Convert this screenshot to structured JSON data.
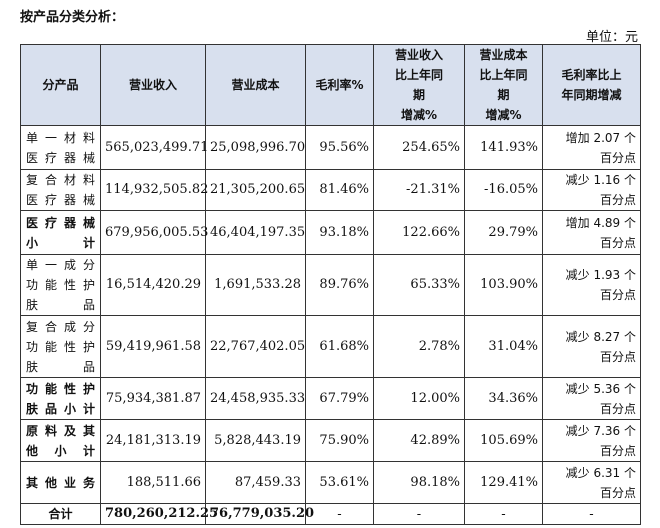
{
  "title": "按产品分类分析：",
  "unit": "单位：元",
  "headers": {
    "product": "分产品",
    "revenue": "营业收入",
    "cost": "营业成本",
    "margin": "毛利率%",
    "revenue_change": [
      "营业收入",
      "比上年同",
      "期",
      "增减%"
    ],
    "cost_change": [
      "营业成本",
      "比上年同",
      "期",
      "增减%"
    ],
    "margin_change": [
      "毛利率比上",
      "年同期增减"
    ]
  },
  "rows": [
    {
      "product": [
        "单一材料",
        "医疗器械"
      ],
      "revenue": "565,023,499.71",
      "cost": "25,098,996.70",
      "margin": "95.56%",
      "revenue_change": "254.65%",
      "cost_change": "141.93%",
      "margin_change": [
        "增加 2.07 个",
        "百分点"
      ],
      "bold": false
    },
    {
      "product": [
        "复合材料",
        "医疗器械"
      ],
      "revenue": "114,932,505.82",
      "cost": "21,305,200.65",
      "margin": "81.46%",
      "revenue_change": "-21.31%",
      "cost_change": "-16.05%",
      "margin_change": [
        "减少 1.16 个",
        "百分点"
      ],
      "bold": false
    },
    {
      "product": [
        "医疗器械",
        "小计"
      ],
      "revenue": "679,956,005.53",
      "cost": "46,404,197.35",
      "margin": "93.18%",
      "revenue_change": "122.66%",
      "cost_change": "29.79%",
      "margin_change": [
        "增加 4.89 个",
        "百分点"
      ],
      "bold": true
    },
    {
      "product": [
        "单一成分",
        "功能性护",
        "肤品"
      ],
      "revenue": "16,514,420.29",
      "cost": "1,691,533.28",
      "margin": "89.76%",
      "revenue_change": "65.33%",
      "cost_change": "103.90%",
      "margin_change": [
        "减少 1.93 个",
        "百分点"
      ],
      "bold": false
    },
    {
      "product": [
        "复合成分",
        "功能性护",
        "肤品"
      ],
      "revenue": "59,419,961.58",
      "cost": "22,767,402.05",
      "margin": "61.68%",
      "revenue_change": "2.78%",
      "cost_change": "31.04%",
      "margin_change": [
        "减少 8.27 个",
        "百分点"
      ],
      "bold": false
    },
    {
      "product": [
        "功能性护",
        "肤品小计"
      ],
      "revenue": "75,934,381.87",
      "cost": "24,458,935.33",
      "margin": "67.79%",
      "revenue_change": "12.00%",
      "cost_change": "34.36%",
      "margin_change": [
        "减少 5.36 个",
        "百分点"
      ],
      "bold": true
    },
    {
      "product": [
        "原料及其",
        "他小计"
      ],
      "revenue": "24,181,313.19",
      "cost": "5,828,443.19",
      "margin": "75.90%",
      "revenue_change": "42.89%",
      "cost_change": "105.69%",
      "margin_change": [
        "减少 7.36 个",
        "百分点"
      ],
      "bold": true
    },
    {
      "product": [
        "其他业务",
        ""
      ],
      "revenue": "188,511.66",
      "cost": "87,459.33",
      "margin": "53.61%",
      "revenue_change": "98.18%",
      "cost_change": "129.41%",
      "margin_change": [
        "减少 6.31 个",
        "百分点"
      ],
      "bold": true
    }
  ],
  "total": {
    "product": "合计",
    "revenue": "780,260,212.25",
    "cost": "76,779,035.20",
    "margin": "-",
    "revenue_change": "-",
    "cost_change": "-",
    "margin_change": "-"
  }
}
